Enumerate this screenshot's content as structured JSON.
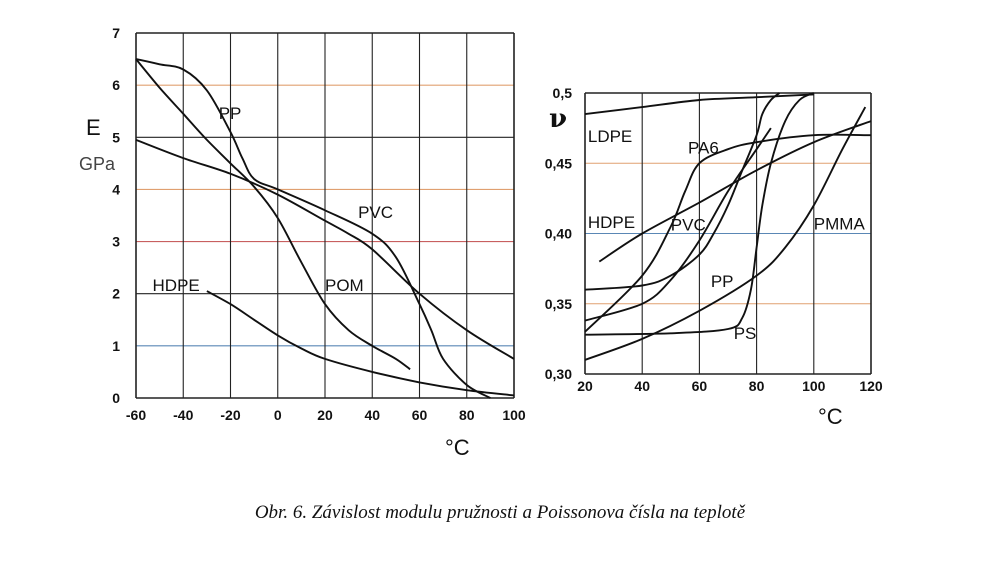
{
  "caption": "Obr. 6. Závislost modulu pružnosti a Poissonova čísla na teplotě",
  "colors": {
    "curve": "#111111",
    "grid": "#222222",
    "grid_orange": "#e0a070",
    "grid_blue": "#5a87b5",
    "grid_red": "#c86060"
  },
  "chart_data": [
    {
      "type": "line",
      "ylabel": "E",
      "yunit": "GPa",
      "xlabel": "°C",
      "xlim": [
        -60,
        100
      ],
      "ylim": [
        0,
        7
      ],
      "xticks": [
        "-60",
        "-40",
        "-20",
        "0",
        "20",
        "40",
        "60",
        "80",
        "100"
      ],
      "yticks": [
        "0",
        "1",
        "2",
        "3",
        "4",
        "5",
        "6",
        "7"
      ],
      "grid": true,
      "series": [
        {
          "name": "PP",
          "label_at": [
            -25,
            5.35
          ],
          "x": [
            -60,
            -50,
            -40,
            -30,
            -20,
            -10,
            0,
            10,
            20,
            30,
            40,
            50,
            56
          ],
          "y": [
            6.5,
            5.95,
            5.45,
            4.95,
            4.5,
            4.05,
            3.45,
            2.6,
            1.8,
            1.3,
            1.0,
            0.75,
            0.55
          ]
        },
        {
          "name": "PVC",
          "label_at": [
            34,
            3.45
          ],
          "x": [
            -60,
            -50,
            -40,
            -30,
            -20,
            -15,
            -10,
            0,
            20,
            40,
            50,
            60,
            65,
            70,
            80,
            90
          ],
          "y": [
            6.5,
            6.4,
            6.3,
            5.9,
            5.1,
            4.6,
            4.2,
            4.0,
            3.6,
            3.15,
            2.7,
            1.8,
            1.3,
            0.75,
            0.25,
            0.0
          ]
        },
        {
          "name": "POM",
          "label_at": [
            20,
            2.05
          ],
          "x": [
            -60,
            -40,
            -20,
            0,
            20,
            30,
            40,
            60,
            80,
            100
          ],
          "y": [
            4.95,
            4.6,
            4.3,
            3.9,
            3.4,
            3.15,
            2.85,
            2.0,
            1.3,
            0.75
          ]
        },
        {
          "name": "HDPE",
          "label_at": [
            -53,
            2.05
          ],
          "x": [
            -30,
            -20,
            -10,
            0,
            10,
            20,
            40,
            60,
            80,
            100
          ],
          "y": [
            2.05,
            1.8,
            1.5,
            1.2,
            0.95,
            0.75,
            0.5,
            0.3,
            0.15,
            0.05
          ]
        }
      ]
    },
    {
      "type": "line",
      "ylabel": "ν",
      "xlabel": "°C",
      "xlim": [
        20,
        120
      ],
      "ylim": [
        0.3,
        0.5
      ],
      "xticks": [
        "20",
        "40",
        "60",
        "80",
        "100",
        "120"
      ],
      "yticks": [
        "0,30",
        "0,35",
        "0,40",
        "0,45",
        "0,5"
      ],
      "grid": true,
      "series": [
        {
          "name": "LDPE",
          "label_at": [
            21,
            0.465
          ],
          "x": [
            20,
            40,
            60,
            80,
            100
          ],
          "y": [
            0.485,
            0.49,
            0.495,
            0.497,
            0.499
          ]
        },
        {
          "name": "PA6",
          "label_at": [
            56,
            0.457
          ],
          "x": [
            20,
            40,
            50,
            55,
            60,
            70,
            80,
            100,
            120
          ],
          "y": [
            0.33,
            0.37,
            0.405,
            0.43,
            0.45,
            0.46,
            0.465,
            0.47,
            0.47
          ]
        },
        {
          "name": "HDPE",
          "label_at": [
            21,
            0.404
          ],
          "x": [
            25,
            40,
            60,
            80,
            100,
            120
          ],
          "y": [
            0.38,
            0.4,
            0.422,
            0.445,
            0.465,
            0.48
          ]
        },
        {
          "name": "PVC",
          "label_at": [
            50,
            0.402
          ],
          "x": [
            20,
            40,
            50,
            60,
            65,
            70,
            75,
            80,
            82,
            85,
            88
          ],
          "y": [
            0.36,
            0.363,
            0.37,
            0.385,
            0.4,
            0.42,
            0.445,
            0.47,
            0.485,
            0.495,
            0.5
          ]
        },
        {
          "name": "PP",
          "label_at": [
            64,
            0.362
          ],
          "x": [
            20,
            40,
            50,
            60,
            70,
            80,
            85
          ],
          "y": [
            0.338,
            0.35,
            0.367,
            0.395,
            0.43,
            0.46,
            0.475
          ]
        },
        {
          "name": "PMMA",
          "label_at": [
            100,
            0.403
          ],
          "x": [
            20,
            40,
            60,
            80,
            90,
            100,
            110,
            118
          ],
          "y": [
            0.31,
            0.325,
            0.345,
            0.37,
            0.39,
            0.42,
            0.46,
            0.49
          ]
        },
        {
          "name": "PS",
          "label_at": [
            72,
            0.325
          ],
          "x": [
            20,
            50,
            70,
            75,
            78,
            80,
            82,
            85,
            90,
            95,
            100
          ],
          "y": [
            0.328,
            0.329,
            0.332,
            0.34,
            0.36,
            0.39,
            0.42,
            0.45,
            0.48,
            0.495,
            0.5
          ]
        }
      ]
    }
  ]
}
